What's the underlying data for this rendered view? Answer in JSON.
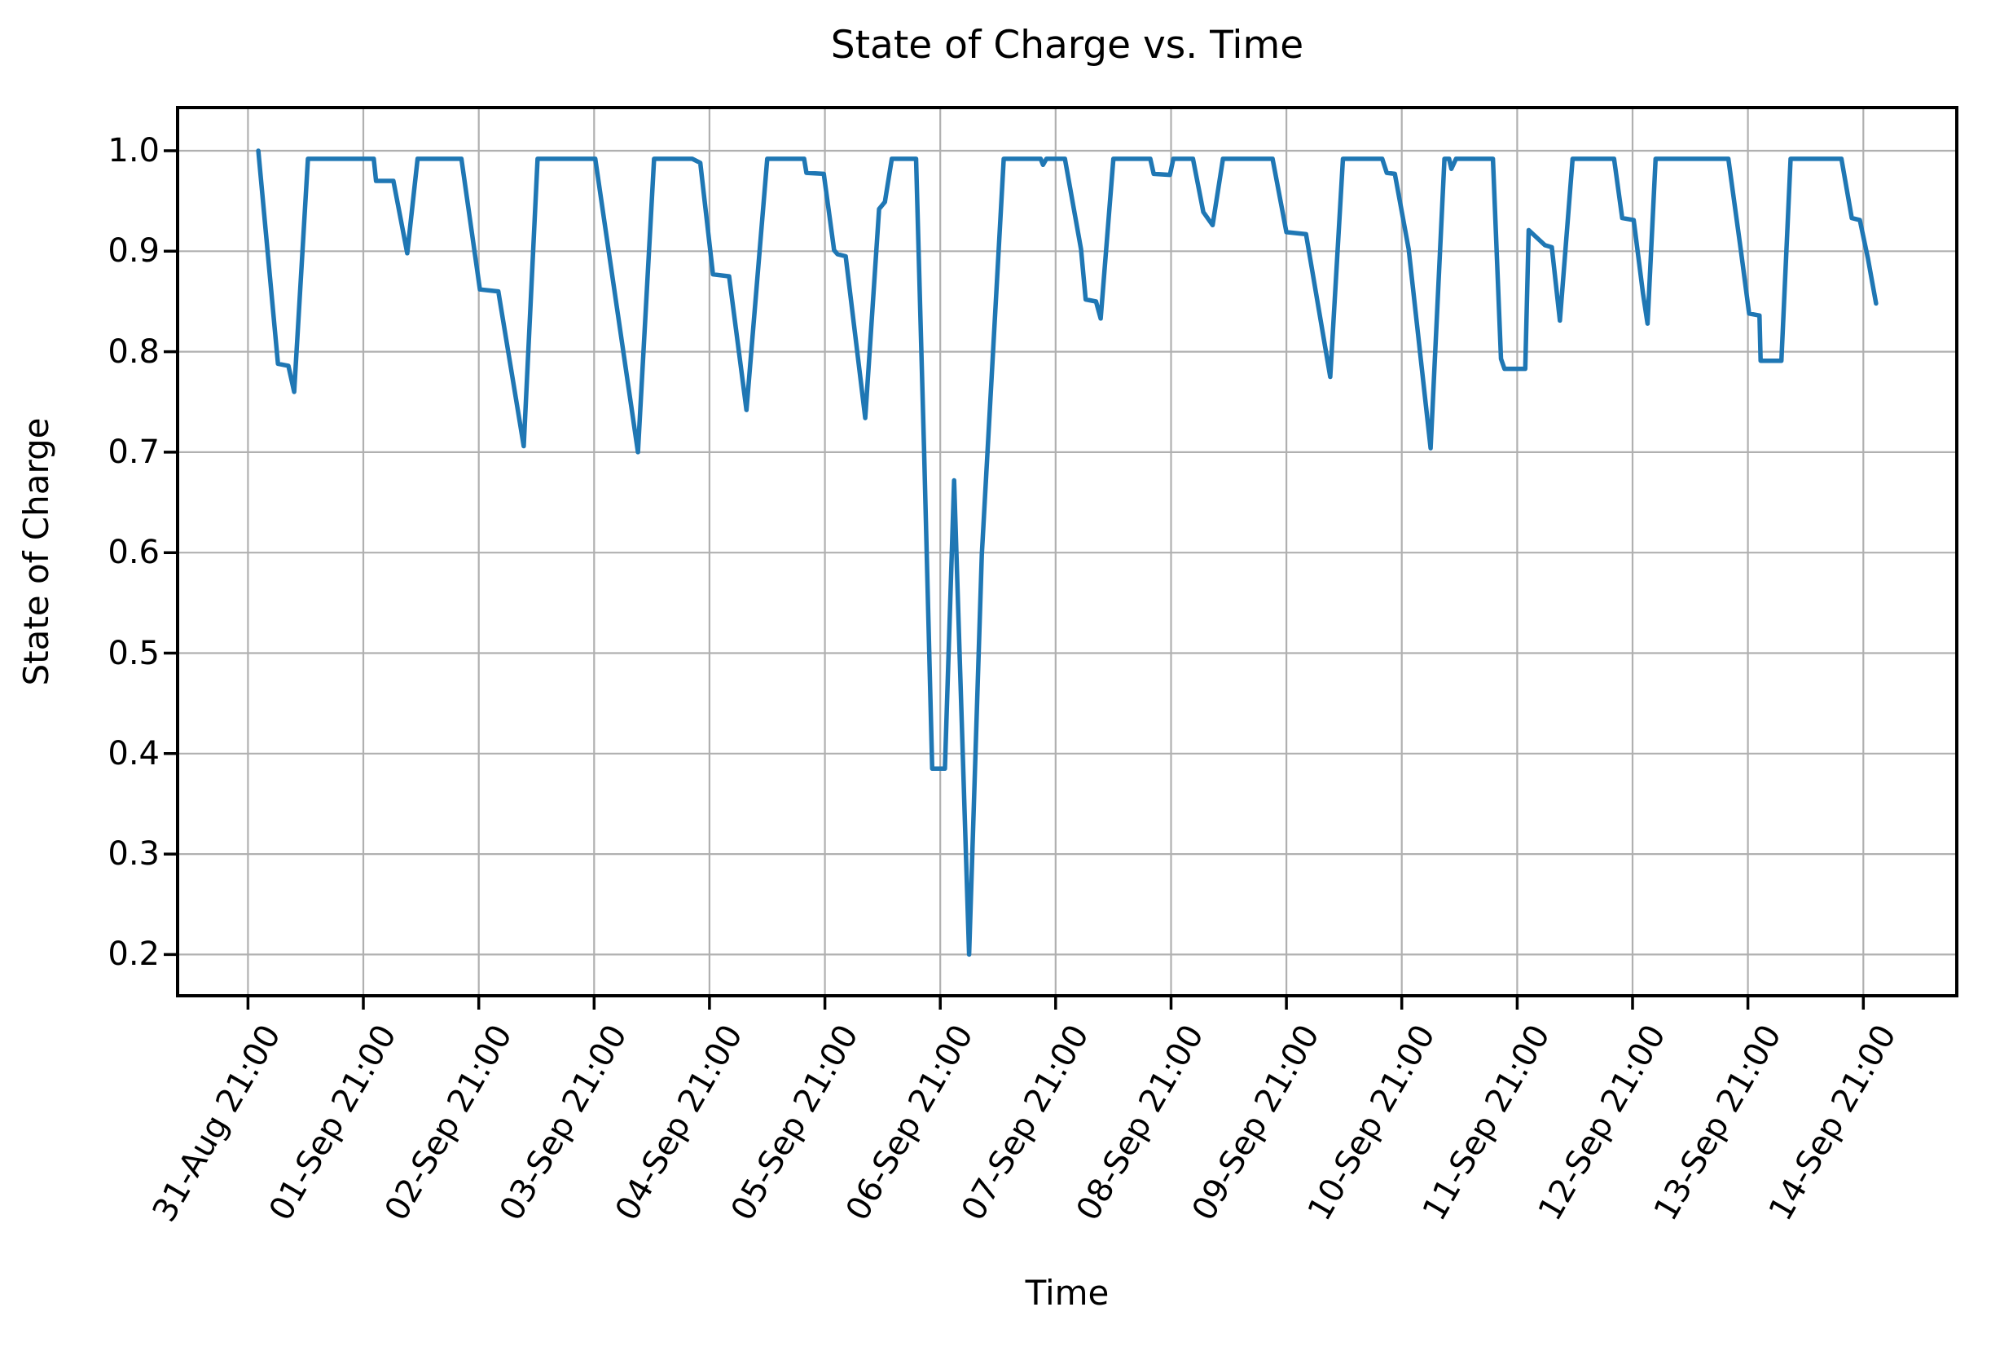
{
  "figure": {
    "title": "State of Charge vs. Time",
    "xlabel": "Time",
    "ylabel": "State of Charge"
  },
  "chart_data": {
    "type": "line",
    "title": "State of Charge vs. Time",
    "xlabel": "Time",
    "ylabel": "State of Charge",
    "legend": "none",
    "grid": true,
    "line_color": "#1f77b4",
    "grid_color": "#b0b0b0",
    "x_unit": "days since 31-Aug 21:00",
    "xlim_days": [
      -0.61,
      14.81
    ],
    "ylim": [
      0.159,
      1.043
    ],
    "x_ticks_days": [
      0,
      1,
      2,
      3,
      4,
      5,
      6,
      7,
      8,
      9,
      10,
      11,
      12,
      13,
      14
    ],
    "x_tick_labels": [
      "31-Aug 21:00",
      "01-Sep 21:00",
      "02-Sep 21:00",
      "03-Sep 21:00",
      "04-Sep 21:00",
      "05-Sep 21:00",
      "06-Sep 21:00",
      "07-Sep 21:00",
      "08-Sep 21:00",
      "09-Sep 21:00",
      "10-Sep 21:00",
      "11-Sep 21:00",
      "12-Sep 21:00",
      "13-Sep 21:00",
      "14-Sep 21:00"
    ],
    "y_ticks": [
      0.2,
      0.3,
      0.4,
      0.5,
      0.6,
      0.7,
      0.8,
      0.9,
      1.0
    ],
    "y_tick_labels": [
      "0.2",
      "0.3",
      "0.4",
      "0.5",
      "0.6",
      "0.7",
      "0.8",
      "0.9",
      "1.0"
    ],
    "points": [
      [
        0.09,
        1.0
      ],
      [
        0.26,
        0.788
      ],
      [
        0.35,
        0.786
      ],
      [
        0.4,
        0.76
      ],
      [
        0.52,
        0.992
      ],
      [
        1.09,
        0.992
      ],
      [
        1.11,
        0.97
      ],
      [
        1.26,
        0.97
      ],
      [
        1.38,
        0.898
      ],
      [
        1.47,
        0.992
      ],
      [
        1.85,
        0.992
      ],
      [
        2.01,
        0.862
      ],
      [
        2.17,
        0.86
      ],
      [
        2.39,
        0.706
      ],
      [
        2.51,
        0.992
      ],
      [
        3.01,
        0.992
      ],
      [
        3.38,
        0.7
      ],
      [
        3.52,
        0.992
      ],
      [
        3.85,
        0.992
      ],
      [
        3.92,
        0.988
      ],
      [
        4.03,
        0.877
      ],
      [
        4.17,
        0.875
      ],
      [
        4.32,
        0.742
      ],
      [
        4.5,
        0.992
      ],
      [
        4.82,
        0.992
      ],
      [
        4.84,
        0.978
      ],
      [
        4.99,
        0.977
      ],
      [
        5.08,
        0.901
      ],
      [
        5.11,
        0.897
      ],
      [
        5.18,
        0.895
      ],
      [
        5.35,
        0.734
      ],
      [
        5.47,
        0.942
      ],
      [
        5.52,
        0.949
      ],
      [
        5.58,
        0.992
      ],
      [
        5.79,
        0.992
      ],
      [
        5.86,
        0.7
      ],
      [
        5.93,
        0.385
      ],
      [
        6.04,
        0.385
      ],
      [
        6.12,
        0.672
      ],
      [
        6.25,
        0.2
      ],
      [
        6.36,
        0.598
      ],
      [
        6.55,
        0.992
      ],
      [
        6.87,
        0.992
      ],
      [
        6.89,
        0.986
      ],
      [
        6.92,
        0.992
      ],
      [
        7.08,
        0.992
      ],
      [
        7.22,
        0.902
      ],
      [
        7.26,
        0.852
      ],
      [
        7.35,
        0.85
      ],
      [
        7.39,
        0.833
      ],
      [
        7.5,
        0.992
      ],
      [
        7.82,
        0.992
      ],
      [
        7.85,
        0.977
      ],
      [
        7.99,
        0.976
      ],
      [
        8.02,
        0.992
      ],
      [
        8.19,
        0.992
      ],
      [
        8.28,
        0.939
      ],
      [
        8.36,
        0.926
      ],
      [
        8.45,
        0.992
      ],
      [
        8.88,
        0.992
      ],
      [
        9.0,
        0.919
      ],
      [
        9.17,
        0.917
      ],
      [
        9.38,
        0.775
      ],
      [
        9.49,
        0.992
      ],
      [
        9.83,
        0.992
      ],
      [
        9.87,
        0.978
      ],
      [
        9.94,
        0.977
      ],
      [
        10.06,
        0.902
      ],
      [
        10.25,
        0.704
      ],
      [
        10.37,
        0.992
      ],
      [
        10.41,
        0.992
      ],
      [
        10.43,
        0.982
      ],
      [
        10.47,
        0.992
      ],
      [
        10.79,
        0.992
      ],
      [
        10.86,
        0.793
      ],
      [
        10.89,
        0.783
      ],
      [
        11.07,
        0.783
      ],
      [
        11.1,
        0.921
      ],
      [
        11.24,
        0.906
      ],
      [
        11.3,
        0.904
      ],
      [
        11.37,
        0.831
      ],
      [
        11.48,
        0.992
      ],
      [
        11.84,
        0.992
      ],
      [
        11.91,
        0.933
      ],
      [
        12.01,
        0.931
      ],
      [
        12.09,
        0.858
      ],
      [
        12.13,
        0.828
      ],
      [
        12.2,
        0.992
      ],
      [
        12.83,
        0.992
      ],
      [
        12.94,
        0.9
      ],
      [
        13.01,
        0.838
      ],
      [
        13.1,
        0.836
      ],
      [
        13.11,
        0.791
      ],
      [
        13.29,
        0.791
      ],
      [
        13.37,
        0.992
      ],
      [
        13.81,
        0.992
      ],
      [
        13.9,
        0.933
      ],
      [
        13.97,
        0.931
      ],
      [
        14.04,
        0.893
      ],
      [
        14.11,
        0.848
      ]
    ]
  }
}
